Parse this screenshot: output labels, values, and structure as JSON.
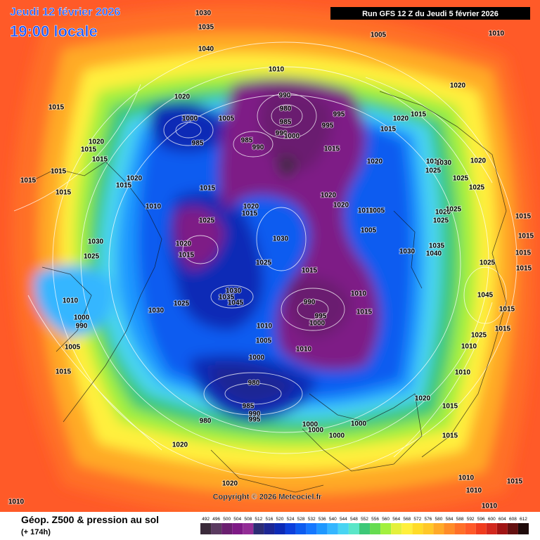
{
  "header": {
    "date": "Jeudi 12 février 2026",
    "time": "19:00 locale",
    "run": "Run GFS 12 Z du Jeudi 5 février 2026"
  },
  "copyright": "Copyright © 2026 Meteociel.fr",
  "footer": {
    "label": "Géop. Z500 & pression au sol",
    "lead": "(+ 174h)"
  },
  "scale": {
    "values": [
      492,
      496,
      500,
      504,
      508,
      512,
      516,
      520,
      524,
      528,
      532,
      536,
      540,
      544,
      548,
      552,
      556,
      560,
      564,
      568,
      572,
      576,
      580,
      584,
      588,
      592,
      596,
      600,
      604,
      608,
      612
    ],
    "colors": [
      "#3a2a3a",
      "#5a3a60",
      "#6a1f70",
      "#7e1a86",
      "#922c96",
      "#2c2c74",
      "#1c2694",
      "#0c2ab6",
      "#0c40dc",
      "#0c5cf0",
      "#1478ff",
      "#1e98ff",
      "#34b6ff",
      "#48d4f2",
      "#5ae6c8",
      "#3cc878",
      "#66dc50",
      "#a2f03e",
      "#e4f03c",
      "#fff03c",
      "#ffdc28",
      "#ffc828",
      "#ffaa28",
      "#ff8c28",
      "#ff7028",
      "#ff5a28",
      "#f03c1e",
      "#d2281e",
      "#a01414",
      "#641010",
      "#1e0a0a"
    ]
  },
  "isobar_labels": [
    1030,
    1035,
    1040,
    1005,
    1010,
    1010,
    1020,
    1015,
    1000,
    1005,
    990,
    980,
    995,
    985,
    995,
    990,
    1000,
    985,
    990,
    985,
    1015,
    1020,
    1015,
    1015,
    1020,
    1020,
    1015,
    1015,
    1015,
    1015,
    1020,
    1015,
    1015,
    1020,
    1010,
    1030,
    1025,
    1020,
    1025,
    1025,
    1015,
    1020,
    1020,
    1010,
    1020,
    1015,
    1010,
    1005,
    1020,
    1025,
    1025,
    1025,
    1005,
    1030,
    1030,
    1020,
    1015,
    1030,
    1035,
    1040,
    1025,
    1025,
    1015,
    1025,
    1015,
    1010,
    1030,
    1035,
    1045,
    1010,
    990,
    995,
    1000,
    1015,
    1030,
    1025,
    1010,
    1000,
    990,
    1005,
    1010,
    1005,
    1015,
    1000,
    980,
    985,
    990,
    995,
    980,
    1020,
    1015,
    1000,
    1000,
    1000,
    1000,
    1020,
    1015,
    1020,
    1010,
    1010,
    1015,
    1010,
    1010,
    1010,
    1010,
    1015,
    1025,
    1045,
    1015,
    1015,
    1015,
    1015
  ]
}
